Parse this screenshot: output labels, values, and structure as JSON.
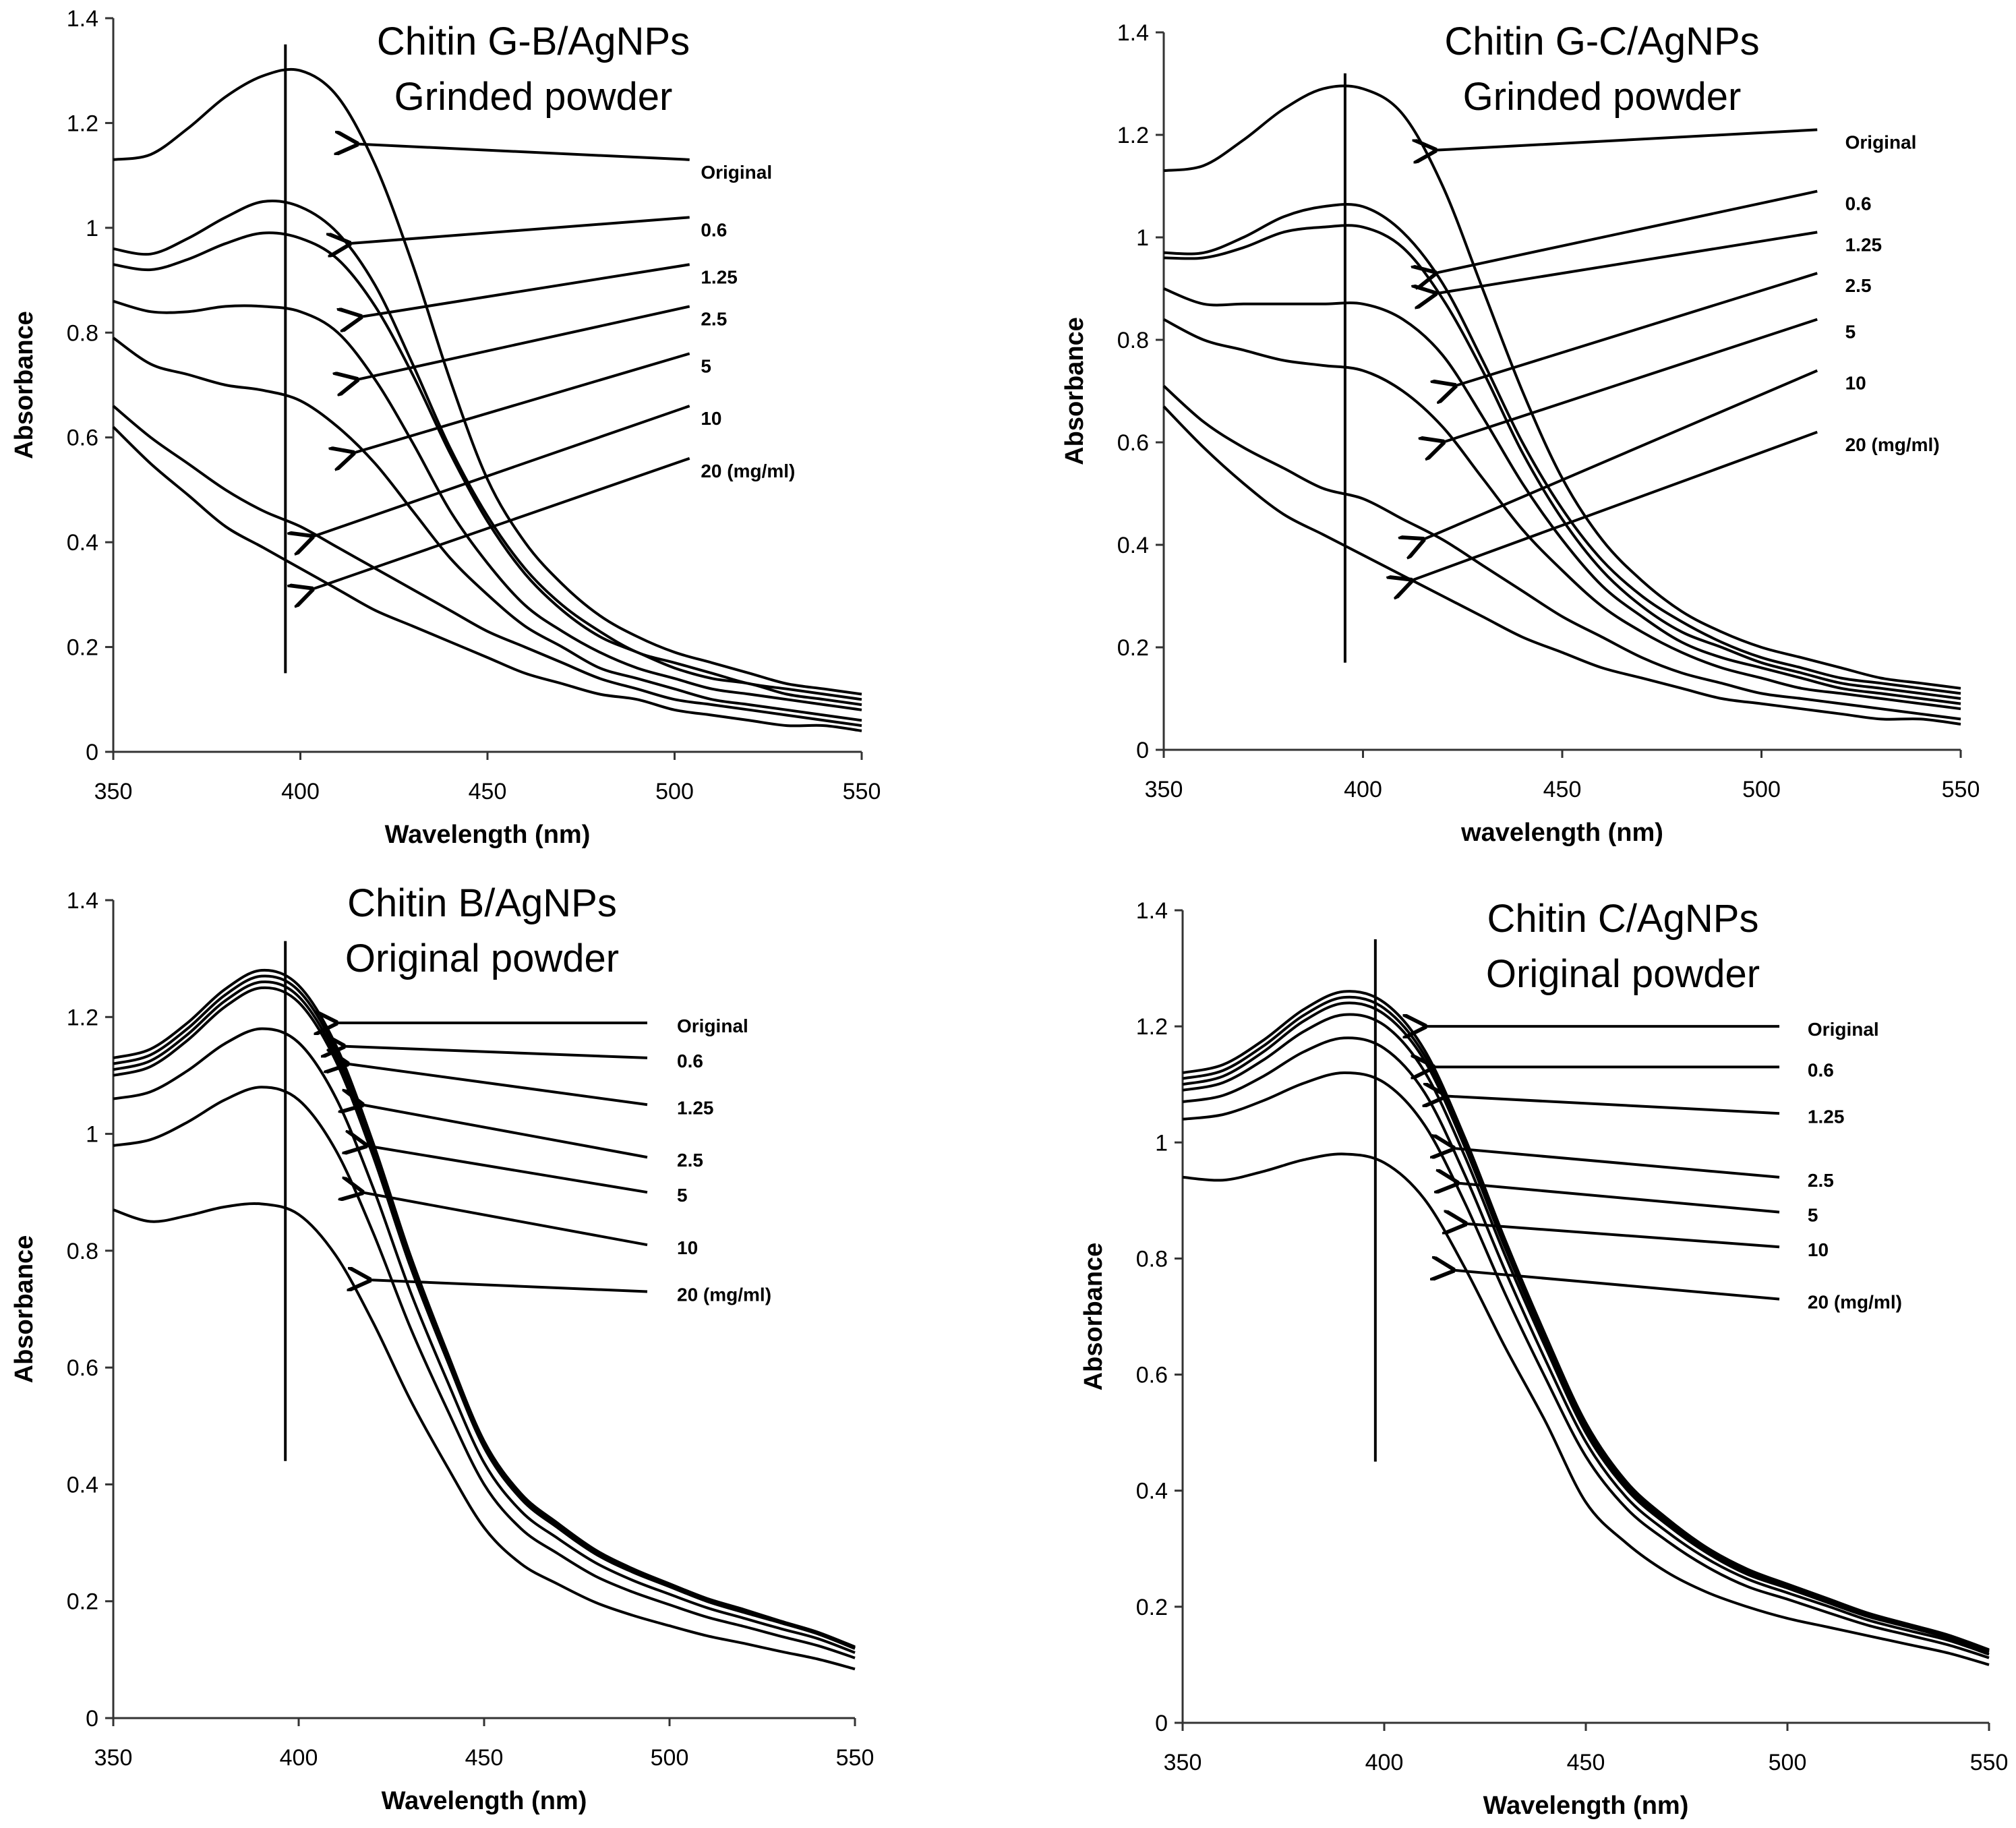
{
  "chart_data": [
    {
      "type": "line",
      "title": [
        "Chitin G-B/AgNPs",
        "Grinded  powder"
      ],
      "xlabel": "Wavelength (nm)",
      "ylabel": "Absorbance",
      "xlim": [
        350,
        550
      ],
      "ylim": [
        0,
        1.4
      ],
      "xticks": [
        350,
        400,
        450,
        500,
        550
      ],
      "yticks": [
        "0",
        "0.2",
        "0.4",
        "0.6",
        "0.8",
        "1",
        "1.2",
        "1.4"
      ],
      "x": [
        350,
        360,
        370,
        380,
        390,
        400,
        410,
        420,
        430,
        440,
        450,
        460,
        470,
        480,
        490,
        500,
        510,
        520,
        530,
        540,
        550
      ],
      "marker_line_x": 396,
      "marker_line_y": [
        0.15,
        1.35
      ],
      "series": [
        {
          "name": "Original",
          "values": [
            1.13,
            1.14,
            1.19,
            1.25,
            1.29,
            1.3,
            1.25,
            1.12,
            0.93,
            0.71,
            0.52,
            0.4,
            0.32,
            0.26,
            0.22,
            0.19,
            0.17,
            0.15,
            0.13,
            0.12,
            0.11
          ],
          "arrow_to": [
            415,
            1.16
          ]
        },
        {
          "name": "0.6",
          "values": [
            0.96,
            0.95,
            0.98,
            1.02,
            1.05,
            1.04,
            0.99,
            0.89,
            0.74,
            0.58,
            0.45,
            0.35,
            0.28,
            0.23,
            0.19,
            0.17,
            0.15,
            0.13,
            0.12,
            0.11,
            0.1
          ],
          "arrow_to": [
            413,
            0.97
          ]
        },
        {
          "name": "1.25",
          "values": [
            0.93,
            0.92,
            0.94,
            0.97,
            0.99,
            0.98,
            0.94,
            0.85,
            0.72,
            0.57,
            0.44,
            0.34,
            0.27,
            0.22,
            0.19,
            0.16,
            0.14,
            0.13,
            0.11,
            0.1,
            0.09
          ],
          "arrow_to": [
            416,
            0.83
          ]
        },
        {
          "name": "2.5",
          "values": [
            0.86,
            0.84,
            0.84,
            0.85,
            0.85,
            0.84,
            0.8,
            0.71,
            0.59,
            0.46,
            0.36,
            0.28,
            0.23,
            0.19,
            0.16,
            0.14,
            0.12,
            0.11,
            0.1,
            0.09,
            0.08
          ],
          "arrow_to": [
            415,
            0.71
          ]
        },
        {
          "name": "5",
          "values": [
            0.79,
            0.74,
            0.72,
            0.7,
            0.69,
            0.67,
            0.62,
            0.55,
            0.46,
            0.37,
            0.3,
            0.24,
            0.2,
            0.16,
            0.14,
            0.12,
            0.1,
            0.09,
            0.08,
            0.07,
            0.06
          ],
          "arrow_to": [
            414,
            0.57
          ]
        },
        {
          "name": "10",
          "values": [
            0.66,
            0.6,
            0.55,
            0.5,
            0.46,
            0.43,
            0.39,
            0.35,
            0.31,
            0.27,
            0.23,
            0.2,
            0.17,
            0.14,
            0.12,
            0.1,
            0.09,
            0.08,
            0.07,
            0.06,
            0.05
          ],
          "arrow_to": [
            403,
            0.41
          ]
        },
        {
          "name": "20 (mg/ml)",
          "values": [
            0.62,
            0.55,
            0.49,
            0.43,
            0.39,
            0.35,
            0.31,
            0.27,
            0.24,
            0.21,
            0.18,
            0.15,
            0.13,
            0.11,
            0.1,
            0.08,
            0.07,
            0.06,
            0.05,
            0.05,
            0.04
          ],
          "arrow_to": [
            403,
            0.31
          ]
        }
      ]
    },
    {
      "type": "line",
      "title": [
        "Chitin G-C/AgNPs",
        "Grinded powder"
      ],
      "xlabel": "wavelength (nm)",
      "ylabel": "Absorbance",
      "xlim": [
        350,
        550
      ],
      "ylim": [
        0,
        1.4
      ],
      "xticks": [
        350,
        400,
        450,
        500,
        550
      ],
      "yticks": [
        "0",
        "0.2",
        "0.4",
        "0.6",
        "0.8",
        "1",
        "1.2",
        "1.4"
      ],
      "x": [
        350,
        360,
        370,
        380,
        390,
        400,
        410,
        420,
        430,
        440,
        450,
        460,
        470,
        480,
        490,
        500,
        510,
        520,
        530,
        540,
        550
      ],
      "marker_line_x": 395.5,
      "marker_line_y": [
        0.17,
        1.32
      ],
      "series": [
        {
          "name": "Original",
          "values": [
            1.13,
            1.14,
            1.19,
            1.25,
            1.29,
            1.29,
            1.24,
            1.1,
            0.9,
            0.7,
            0.53,
            0.41,
            0.33,
            0.27,
            0.23,
            0.2,
            0.18,
            0.16,
            0.14,
            0.13,
            0.12
          ],
          "arrow_to": [
            418,
            1.17
          ]
        },
        {
          "name": "0.6",
          "values": [
            0.97,
            0.97,
            1.0,
            1.04,
            1.06,
            1.06,
            1.01,
            0.91,
            0.76,
            0.6,
            0.47,
            0.37,
            0.3,
            0.25,
            0.21,
            0.18,
            0.16,
            0.14,
            0.13,
            0.12,
            0.11
          ],
          "arrow_to": [
            418,
            0.93
          ]
        },
        {
          "name": "1.25",
          "values": [
            0.96,
            0.96,
            0.98,
            1.01,
            1.02,
            1.02,
            0.98,
            0.88,
            0.74,
            0.58,
            0.45,
            0.35,
            0.28,
            0.23,
            0.2,
            0.17,
            0.15,
            0.13,
            0.12,
            0.11,
            0.1
          ],
          "arrow_to": [
            418,
            0.89
          ]
        },
        {
          "name": "2.5",
          "values": [
            0.9,
            0.87,
            0.87,
            0.87,
            0.87,
            0.87,
            0.84,
            0.77,
            0.65,
            0.52,
            0.41,
            0.32,
            0.26,
            0.21,
            0.18,
            0.16,
            0.14,
            0.12,
            0.11,
            0.1,
            0.09
          ],
          "arrow_to": [
            423,
            0.71
          ]
        },
        {
          "name": "5",
          "values": [
            0.84,
            0.8,
            0.78,
            0.76,
            0.75,
            0.74,
            0.7,
            0.63,
            0.53,
            0.43,
            0.35,
            0.28,
            0.23,
            0.19,
            0.16,
            0.14,
            0.12,
            0.11,
            0.1,
            0.09,
            0.08
          ],
          "arrow_to": [
            420,
            0.6
          ]
        },
        {
          "name": "10",
          "values": [
            0.71,
            0.64,
            0.59,
            0.55,
            0.51,
            0.49,
            0.45,
            0.41,
            0.36,
            0.31,
            0.26,
            0.22,
            0.18,
            0.15,
            0.13,
            0.11,
            0.1,
            0.09,
            0.08,
            0.07,
            0.06
          ],
          "arrow_to": [
            415,
            0.41
          ]
        },
        {
          "name": "20 (mg/ml)",
          "values": [
            0.67,
            0.59,
            0.52,
            0.46,
            0.42,
            0.38,
            0.34,
            0.3,
            0.26,
            0.22,
            0.19,
            0.16,
            0.14,
            0.12,
            0.1,
            0.09,
            0.08,
            0.07,
            0.06,
            0.06,
            0.05
          ],
          "arrow_to": [
            412,
            0.33
          ]
        }
      ]
    },
    {
      "type": "line",
      "title": [
        "Chitin B/AgNPs",
        "Original powder"
      ],
      "xlabel": "Wavelength (nm)",
      "ylabel": "Absorbance",
      "xlim": [
        350,
        550
      ],
      "ylim": [
        0,
        1.4
      ],
      "xticks": [
        350,
        400,
        450,
        500,
        550
      ],
      "yticks": [
        "0",
        "0.2",
        "0.4",
        "0.6",
        "0.8",
        "1",
        "1.2",
        "1.4"
      ],
      "x": [
        350,
        360,
        370,
        380,
        390,
        400,
        410,
        420,
        430,
        440,
        450,
        460,
        470,
        480,
        490,
        500,
        510,
        520,
        530,
        540,
        550
      ],
      "marker_line_x": 396.4,
      "marker_line_y": [
        0.44,
        1.33
      ],
      "series": [
        {
          "name": "Original",
          "values": [
            1.13,
            1.145,
            1.19,
            1.247,
            1.28,
            1.254,
            1.152,
            0.986,
            0.794,
            0.627,
            0.474,
            0.384,
            0.333,
            0.288,
            0.256,
            0.23,
            0.205,
            0.186,
            0.166,
            0.147,
            0.122
          ],
          "arrow_to": [
            410,
            1.19
          ]
        },
        {
          "name": "0.6",
          "values": [
            1.12,
            1.135,
            1.18,
            1.237,
            1.27,
            1.245,
            1.143,
            0.978,
            0.787,
            0.622,
            0.47,
            0.381,
            0.33,
            0.286,
            0.254,
            0.229,
            0.203,
            0.184,
            0.165,
            0.146,
            0.121
          ],
          "arrow_to": [
            412,
            1.15
          ]
        },
        {
          "name": "1.25",
          "values": [
            1.11,
            1.125,
            1.17,
            1.227,
            1.26,
            1.235,
            1.134,
            0.97,
            0.781,
            0.617,
            0.466,
            0.378,
            0.328,
            0.284,
            0.252,
            0.227,
            0.202,
            0.183,
            0.164,
            0.145,
            0.12
          ],
          "arrow_to": [
            413,
            1.12
          ]
        },
        {
          "name": "2.5",
          "values": [
            1.1,
            1.115,
            1.16,
            1.217,
            1.25,
            1.225,
            1.125,
            0.963,
            0.775,
            0.613,
            0.463,
            0.375,
            0.325,
            0.281,
            0.25,
            0.225,
            0.2,
            0.181,
            0.163,
            0.144,
            0.119
          ],
          "arrow_to": [
            417,
            1.05
          ]
        },
        {
          "name": "5",
          "values": [
            1.06,
            1.072,
            1.108,
            1.154,
            1.18,
            1.156,
            1.062,
            0.909,
            0.732,
            0.578,
            0.437,
            0.354,
            0.307,
            0.266,
            0.236,
            0.212,
            0.189,
            0.171,
            0.153,
            0.136,
            0.112
          ],
          "arrow_to": [
            418,
            0.98
          ]
        },
        {
          "name": "10",
          "values": [
            0.98,
            0.99,
            1.02,
            1.058,
            1.08,
            1.058,
            0.972,
            0.832,
            0.67,
            0.529,
            0.4,
            0.324,
            0.281,
            0.243,
            0.216,
            0.194,
            0.173,
            0.157,
            0.14,
            0.124,
            0.103
          ],
          "arrow_to": [
            417,
            0.9
          ]
        },
        {
          "name": "20 (mg/ml)",
          "values": [
            0.87,
            0.85,
            0.86,
            0.875,
            0.88,
            0.862,
            0.792,
            0.678,
            0.546,
            0.431,
            0.326,
            0.264,
            0.229,
            0.198,
            0.176,
            0.158,
            0.141,
            0.128,
            0.114,
            0.101,
            0.084
          ],
          "arrow_to": [
            419,
            0.75
          ]
        }
      ]
    },
    {
      "type": "line",
      "title": [
        "Chitin C/AgNPs",
        "Original powder"
      ],
      "xlabel": "Wavelength (nm)",
      "ylabel": "Absorbance",
      "xlim": [
        350,
        550
      ],
      "ylim": [
        0,
        1.4
      ],
      "xticks": [
        350,
        400,
        450,
        500,
        550
      ],
      "yticks": [
        "0",
        "0.2",
        "0.4",
        "0.6",
        "0.8",
        "1",
        "1.2",
        "1.4"
      ],
      "x": [
        350,
        360,
        370,
        380,
        390,
        400,
        410,
        420,
        430,
        440,
        450,
        460,
        470,
        480,
        490,
        500,
        510,
        520,
        530,
        540,
        550
      ],
      "marker_line_x": 397.8,
      "marker_line_y": [
        0.45,
        1.35
      ],
      "series": [
        {
          "name": "Original",
          "values": [
            1.12,
            1.134,
            1.176,
            1.229,
            1.26,
            1.241,
            1.159,
            1.008,
            0.832,
            0.668,
            0.517,
            0.416,
            0.353,
            0.302,
            0.265,
            0.239,
            0.214,
            0.189,
            0.17,
            0.151,
            0.126
          ],
          "arrow_to": [
            410,
            1.2
          ]
        },
        {
          "name": "0.6",
          "values": [
            1.11,
            1.124,
            1.166,
            1.219,
            1.25,
            1.231,
            1.15,
            1.0,
            0.825,
            0.663,
            0.513,
            0.413,
            0.35,
            0.3,
            0.263,
            0.238,
            0.213,
            0.188,
            0.169,
            0.15,
            0.125
          ],
          "arrow_to": [
            412,
            1.13
          ]
        },
        {
          "name": "1.25",
          "values": [
            1.1,
            1.114,
            1.156,
            1.209,
            1.24,
            1.221,
            1.141,
            0.992,
            0.818,
            0.657,
            0.508,
            0.409,
            0.347,
            0.298,
            0.26,
            0.236,
            0.211,
            0.186,
            0.167,
            0.149,
            0.124
          ],
          "arrow_to": [
            415,
            1.08
          ]
        },
        {
          "name": "2.5",
          "values": [
            1.09,
            1.103,
            1.142,
            1.191,
            1.22,
            1.202,
            1.122,
            0.976,
            0.805,
            0.647,
            0.5,
            0.403,
            0.342,
            0.293,
            0.256,
            0.232,
            0.207,
            0.183,
            0.165,
            0.146,
            0.122
          ],
          "arrow_to": [
            417,
            0.99
          ]
        },
        {
          "name": "5",
          "values": [
            1.07,
            1.081,
            1.114,
            1.156,
            1.18,
            1.162,
            1.086,
            0.944,
            0.779,
            0.625,
            0.484,
            0.389,
            0.33,
            0.283,
            0.248,
            0.224,
            0.201,
            0.177,
            0.159,
            0.142,
            0.118
          ],
          "arrow_to": [
            418,
            0.93
          ]
        },
        {
          "name": "10",
          "values": [
            1.04,
            1.048,
            1.072,
            1.102,
            1.12,
            1.103,
            1.03,
            0.896,
            0.739,
            0.594,
            0.459,
            0.37,
            0.314,
            0.269,
            0.235,
            0.213,
            0.19,
            0.168,
            0.151,
            0.134,
            0.112
          ],
          "arrow_to": [
            420,
            0.86
          ]
        },
        {
          "name": "20 (mg/ml)",
          "values": [
            0.94,
            0.935,
            0.95,
            0.97,
            0.98,
            0.965,
            0.902,
            0.784,
            0.647,
            0.519,
            0.38,
            0.31,
            0.26,
            0.225,
            0.2,
            0.18,
            0.165,
            0.15,
            0.135,
            0.12,
            0.1
          ],
          "arrow_to": [
            417,
            0.78
          ]
        }
      ]
    }
  ]
}
